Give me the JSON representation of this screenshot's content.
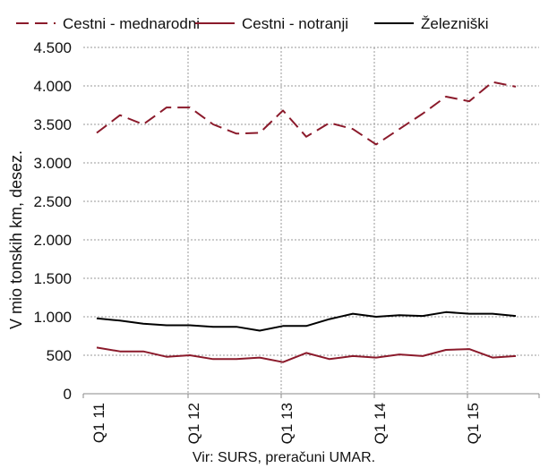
{
  "chart_data": {
    "type": "line",
    "title": "",
    "ylabel": "V mio tonskih km, desez.",
    "source": "Vir: SURS, preračuni UMAR.",
    "ylim": [
      0,
      4500
    ],
    "yticks": [
      {
        "value": 0,
        "label": "0"
      },
      {
        "value": 500,
        "label": "500"
      },
      {
        "value": 1000,
        "label": "1.000"
      },
      {
        "value": 1500,
        "label": "1.500"
      },
      {
        "value": 2000,
        "label": "2.000"
      },
      {
        "value": 2500,
        "label": "2.500"
      },
      {
        "value": 3000,
        "label": "3.000"
      },
      {
        "value": 3500,
        "label": "3.500"
      },
      {
        "value": 4000,
        "label": "4.000"
      },
      {
        "value": 4500,
        "label": "4.500"
      }
    ],
    "xticks": [
      {
        "index": 0,
        "label": "Q1 11"
      },
      {
        "index": 4,
        "label": "Q1 12"
      },
      {
        "index": 8,
        "label": "Q1 13"
      },
      {
        "index": 12,
        "label": "Q1 14"
      },
      {
        "index": 16,
        "label": "Q1 15"
      }
    ],
    "grid": true,
    "legend_position": "top",
    "series": [
      {
        "name": "Cestni - mednarodni",
        "color": "#8b1a2b",
        "dash": "dashed",
        "values": [
          3390,
          3620,
          3500,
          3720,
          3720,
          3500,
          3380,
          3390,
          3680,
          3340,
          3520,
          3440,
          3240,
          3440,
          3640,
          3860,
          3800,
          4050,
          3990
        ]
      },
      {
        "name": "Cestni - notranji",
        "color": "#8b1a2b",
        "dash": "solid",
        "values": [
          600,
          550,
          550,
          480,
          500,
          450,
          450,
          470,
          410,
          530,
          450,
          490,
          470,
          510,
          490,
          570,
          580,
          470,
          490
        ]
      },
      {
        "name": "Železniški",
        "color": "#000000",
        "dash": "solid",
        "values": [
          980,
          950,
          910,
          890,
          890,
          870,
          870,
          820,
          880,
          880,
          970,
          1040,
          1000,
          1020,
          1010,
          1060,
          1040,
          1040,
          1010
        ]
      }
    ]
  }
}
